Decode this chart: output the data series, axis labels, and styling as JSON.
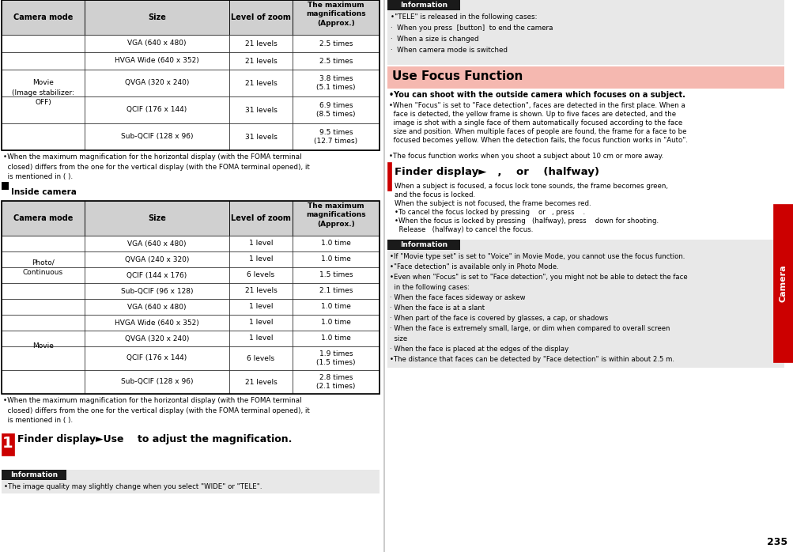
{
  "page_num": "235",
  "tab_label": "Camera",
  "bg_color": "#ffffff",
  "table1_header": [
    "Camera mode",
    "Size",
    "Level of zoom",
    "The maximum magnifications\n(Approx.)"
  ],
  "table1_rows": [
    [
      "Movie\n(Image stabilizer:\nOFF)",
      "VGA (640 x 480)",
      "21 levels",
      "2.5 times"
    ],
    [
      "",
      "HVGA Wide (640 x 352)",
      "21 levels",
      "2.5 times"
    ],
    [
      "",
      "QVGA (320 x 240)",
      "21 levels",
      "3.8 times\n(5.1 times)"
    ],
    [
      "",
      "QCIF (176 x 144)",
      "31 levels",
      "6.9 times\n(8.5 times)"
    ],
    [
      "",
      "Sub-QCIF (128 x 96)",
      "31 levels",
      "9.5 times\n(12.7 times)"
    ]
  ],
  "note1": "When the maximum magnification for the horizontal display (with the FOMA terminal closed) differs from the one for the vertical display (with the FOMA terminal opened), it is mentioned in ( ).",
  "inside_camera_label": "Inside camera",
  "table2_header": [
    "Camera mode",
    "Size",
    "Level of zoom",
    "The maximum magnifications\n(Approx.)"
  ],
  "table2_rows": [
    [
      "Photo/\nContinuous",
      "VGA (640 x 480)",
      "1 level",
      "1.0 time"
    ],
    [
      "",
      "QVGA (240 x 320)",
      "1 level",
      "1.0 time"
    ],
    [
      "",
      "QCIF (144 x 176)",
      "6 levels",
      "1.5 times"
    ],
    [
      "",
      "Sub-QCIF (96 x 128)",
      "21 levels",
      "2.1 times"
    ],
    [
      "Movie",
      "VGA (640 x 480)",
      "1 level",
      "1.0 time"
    ],
    [
      "",
      "HVGA Wide (640 x 352)",
      "1 level",
      "1.0 time"
    ],
    [
      "",
      "QVGA (320 x 240)",
      "1 level",
      "1.0 time"
    ],
    [
      "",
      "QCIF (176 x 144)",
      "6 levels",
      "1.9 times\n(1.5 times)"
    ],
    [
      "",
      "Sub-QCIF (128 x 96)",
      "21 levels",
      "2.8 times\n(2.1 times)"
    ]
  ],
  "note2": "When the maximum magnification for the horizontal display (with the FOMA terminal closed) differs from the one for the vertical display (with the FOMA terminal opened), it is mentioned in ( ).",
  "info_box1_text": "The image quality may slightly change when you select \"WIDE\" or \"TELE\".",
  "right_info_bullets": [
    "\"TELE\" is released in the following cases:",
    "  When you press  [button]  to end the camera",
    "  When a size is changed",
    "  When camera mode is switched"
  ],
  "use_focus_title": "Use Focus Function",
  "use_focus_subtitle": "You can shoot with the outside camera which focuses on a subject.",
  "use_focus_body": [
    "When \"Focus\" is set to \"Face detection\", faces are detected in the first place. When a face is detected, the yellow frame is shown. Up to five faces are detected, and the image is shot with a single face of them automatically focused according to the face size and position. When multiple faces of people are found, the frame for a face to be focused becomes yellow. When the detection fails, the focus function works in \"Auto\".",
    "The focus function works when you shoot a subject about 10 cm or more away."
  ],
  "step1_right_body": [
    "When a subject is focused, a focus lock tone sounds, the frame becomes green,",
    "and the focus is locked.",
    "When the subject is not focused, the frame becomes red.",
    "To cancel the focus locked by pressing  [O]  or  [*] , press  [CLR] .",
    "When the focus is locked by pressing  [cam](halfway), press  [cam]  down for shooting.",
    "  Release  [cam](halfway) to cancel the focus."
  ],
  "right_info2_bullets": [
    "If \"Movie type set\" is set to \"Voice\" in Movie Mode, you cannot use the focus function.",
    "\"Face detection\" is available only in Photo Mode.",
    "Even when \"Focus\" is set to \"Face detection\", you might not be able to detect the face",
    "  in the following cases:",
    "  When the face faces sideway or askew",
    "  When the face is at a slant",
    "  When part of the face is covered by glasses, a cap, or shadows",
    "  When the face is extremely small, large, or dim when compared to overall screen size",
    "  When the face is placed at the edges of the display",
    "The distance that faces can be detected by \"Face detection\" is within about 2.5 m."
  ],
  "header_bg": "#d0d0d0",
  "table_border": "#000000",
  "info_bg": "#e8e8e8",
  "info_header_bg": "#1a1a1a",
  "info_header_color": "#ffffff",
  "use_focus_bg": "#f5b8b0",
  "red_color": "#cc0000",
  "camera_tab_color": "#cc0000"
}
